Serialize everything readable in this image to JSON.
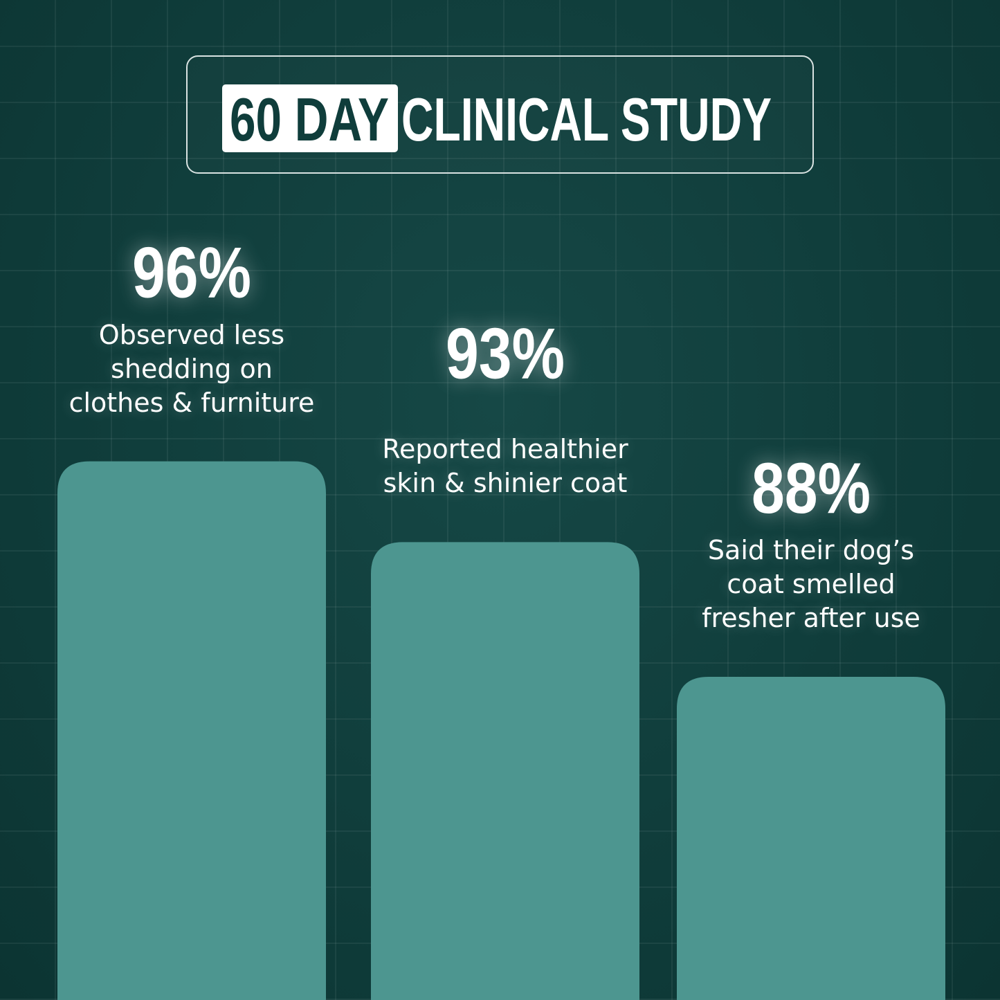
{
  "chart_data": {
    "type": "bar",
    "title_highlight": "60 DAY",
    "title": "CLINICAL STUDY",
    "categories": [
      "Observed less\nshedding on\nclothes & furniture",
      "Reported healthier\nskin & shinier coat",
      "Said their dog’s\ncoat smelled\nfresher after use"
    ],
    "values": [
      96,
      93,
      88
    ],
    "value_labels": [
      "96%",
      "93%",
      "88%"
    ],
    "color": "#4d9690",
    "ylim": [
      76,
      100
    ]
  }
}
